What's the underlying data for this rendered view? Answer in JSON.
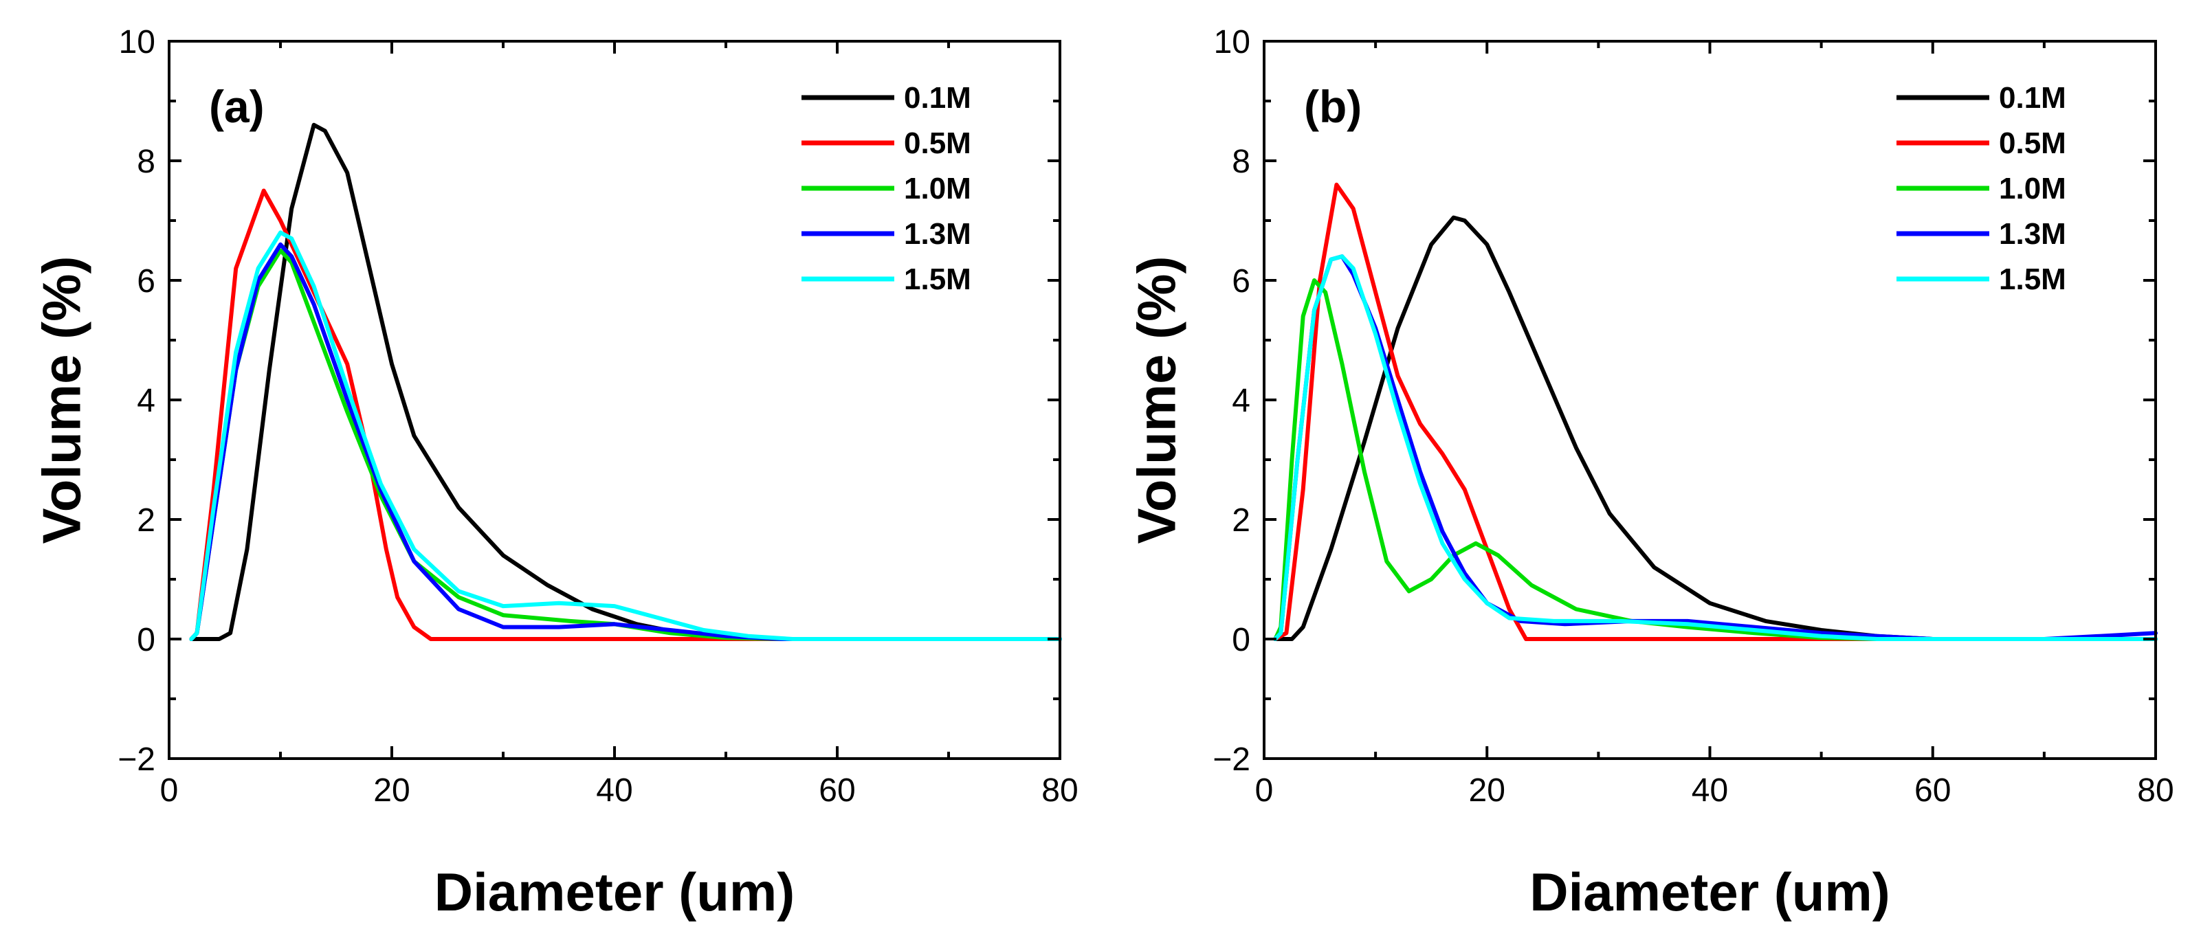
{
  "chart_data": [
    {
      "type": "line",
      "panel_label": "(a)",
      "xlabel": "Diameter (um)",
      "ylabel": "Volume (%)",
      "xlim": [
        0,
        80
      ],
      "ylim": [
        -2,
        10
      ],
      "xticks": [
        0,
        20,
        40,
        60,
        80
      ],
      "yticks": [
        -2,
        0,
        2,
        4,
        6,
        8,
        10
      ],
      "xtick_labels": [
        "0",
        "20",
        "40",
        "60",
        "80"
      ],
      "ytick_labels": [
        "−2",
        "0",
        "2",
        "4",
        "6",
        "8",
        "10"
      ],
      "legend": "top-right",
      "series": [
        {
          "name": "0.1M",
          "color": "#000000",
          "points": [
            [
              2,
              0
            ],
            [
              4.5,
              0
            ],
            [
              5.5,
              0.1
            ],
            [
              7,
              1.5
            ],
            [
              9,
              4.5
            ],
            [
              11,
              7.2
            ],
            [
              13,
              8.6
            ],
            [
              14,
              8.5
            ],
            [
              16,
              7.8
            ],
            [
              18,
              6.2
            ],
            [
              20,
              4.6
            ],
            [
              22,
              3.4
            ],
            [
              24,
              2.8
            ],
            [
              26,
              2.2
            ],
            [
              28,
              1.8
            ],
            [
              30,
              1.4
            ],
            [
              34,
              0.9
            ],
            [
              38,
              0.5
            ],
            [
              42,
              0.25
            ],
            [
              46,
              0.1
            ],
            [
              50,
              0.05
            ],
            [
              55,
              0
            ],
            [
              80,
              0
            ]
          ]
        },
        {
          "name": "0.5M",
          "color": "#ff0000",
          "points": [
            [
              2,
              0
            ],
            [
              2.5,
              0.1
            ],
            [
              4,
              2.5
            ],
            [
              6,
              6.2
            ],
            [
              8.5,
              7.5
            ],
            [
              10,
              7
            ],
            [
              12,
              6.2
            ],
            [
              14,
              5.4
            ],
            [
              16,
              4.6
            ],
            [
              18,
              3
            ],
            [
              19.5,
              1.5
            ],
            [
              20.5,
              0.7
            ],
            [
              22,
              0.2
            ],
            [
              23.5,
              0
            ],
            [
              80,
              0
            ]
          ]
        },
        {
          "name": "1.0M",
          "color": "#00dd00",
          "points": [
            [
              2,
              0
            ],
            [
              2.5,
              0.1
            ],
            [
              4,
              2
            ],
            [
              6,
              4.5
            ],
            [
              8,
              5.9
            ],
            [
              10,
              6.5
            ],
            [
              11,
              6.3
            ],
            [
              13,
              5.3
            ],
            [
              16,
              3.8
            ],
            [
              19,
              2.4
            ],
            [
              22,
              1.3
            ],
            [
              26,
              0.7
            ],
            [
              30,
              0.4
            ],
            [
              36,
              0.3
            ],
            [
              40,
              0.25
            ],
            [
              45,
              0.1
            ],
            [
              50,
              0.02
            ],
            [
              55,
              0
            ],
            [
              80,
              0
            ]
          ]
        },
        {
          "name": "1.3M",
          "color": "#0000ff",
          "points": [
            [
              2,
              0
            ],
            [
              2.5,
              0.1
            ],
            [
              4,
              2
            ],
            [
              6,
              4.5
            ],
            [
              8,
              6
            ],
            [
              10,
              6.6
            ],
            [
              11,
              6.4
            ],
            [
              13,
              5.6
            ],
            [
              16,
              4
            ],
            [
              19,
              2.5
            ],
            [
              22,
              1.3
            ],
            [
              26,
              0.5
            ],
            [
              30,
              0.2
            ],
            [
              35,
              0.2
            ],
            [
              40,
              0.25
            ],
            [
              45,
              0.15
            ],
            [
              50,
              0.05
            ],
            [
              55,
              0
            ],
            [
              80,
              0
            ]
          ]
        },
        {
          "name": "1.5M",
          "color": "#00ffff",
          "points": [
            [
              2,
              0
            ],
            [
              2.5,
              0.1
            ],
            [
              4,
              2.2
            ],
            [
              6,
              4.8
            ],
            [
              8,
              6.2
            ],
            [
              10,
              6.8
            ],
            [
              11,
              6.7
            ],
            [
              13,
              5.9
            ],
            [
              16,
              4.2
            ],
            [
              19,
              2.6
            ],
            [
              22,
              1.5
            ],
            [
              26,
              0.8
            ],
            [
              30,
              0.55
            ],
            [
              35,
              0.6
            ],
            [
              40,
              0.55
            ],
            [
              44,
              0.35
            ],
            [
              48,
              0.15
            ],
            [
              52,
              0.05
            ],
            [
              56,
              0
            ],
            [
              80,
              0
            ]
          ]
        }
      ]
    },
    {
      "type": "line",
      "panel_label": "(b)",
      "xlabel": "Diameter (um)",
      "ylabel": "Volume (%)",
      "xlim": [
        0,
        80
      ],
      "ylim": [
        -2,
        10
      ],
      "xticks": [
        0,
        20,
        40,
        60,
        80
      ],
      "yticks": [
        -2,
        0,
        2,
        4,
        6,
        8,
        10
      ],
      "xtick_labels": [
        "0",
        "20",
        "40",
        "60",
        "80"
      ],
      "ytick_labels": [
        "−2",
        "0",
        "2",
        "4",
        "6",
        "8",
        "10"
      ],
      "legend": "top-right",
      "series": [
        {
          "name": "0.1M",
          "color": "#000000",
          "points": [
            [
              1,
              0
            ],
            [
              2.5,
              0
            ],
            [
              3.5,
              0.2
            ],
            [
              6,
              1.5
            ],
            [
              9,
              3.3
            ],
            [
              12,
              5.2
            ],
            [
              15,
              6.6
            ],
            [
              17,
              7.05
            ],
            [
              18,
              7
            ],
            [
              20,
              6.6
            ],
            [
              22,
              5.8
            ],
            [
              25,
              4.5
            ],
            [
              28,
              3.2
            ],
            [
              31,
              2.1
            ],
            [
              35,
              1.2
            ],
            [
              40,
              0.6
            ],
            [
              45,
              0.3
            ],
            [
              50,
              0.15
            ],
            [
              55,
              0.05
            ],
            [
              60,
              0
            ],
            [
              80,
              0
            ]
          ]
        },
        {
          "name": "0.5M",
          "color": "#ff0000",
          "points": [
            [
              1,
              0
            ],
            [
              2,
              0.1
            ],
            [
              3.5,
              2.5
            ],
            [
              5,
              6
            ],
            [
              6.5,
              7.6
            ],
            [
              8,
              7.2
            ],
            [
              10,
              5.8
            ],
            [
              12,
              4.4
            ],
            [
              14,
              3.6
            ],
            [
              16,
              3.1
            ],
            [
              18,
              2.5
            ],
            [
              20,
              1.5
            ],
            [
              22,
              0.5
            ],
            [
              23.5,
              0
            ],
            [
              80,
              0
            ]
          ]
        },
        {
          "name": "1.0M",
          "color": "#00dd00",
          "points": [
            [
              1,
              0
            ],
            [
              1.5,
              0.2
            ],
            [
              2.5,
              3
            ],
            [
              3.5,
              5.4
            ],
            [
              4.5,
              6
            ],
            [
              5.5,
              5.8
            ],
            [
              7,
              4.6
            ],
            [
              9,
              2.8
            ],
            [
              11,
              1.3
            ],
            [
              13,
              0.8
            ],
            [
              15,
              1
            ],
            [
              17,
              1.4
            ],
            [
              19,
              1.6
            ],
            [
              21,
              1.4
            ],
            [
              24,
              0.9
            ],
            [
              28,
              0.5
            ],
            [
              33,
              0.3
            ],
            [
              38,
              0.2
            ],
            [
              44,
              0.1
            ],
            [
              50,
              0.02
            ],
            [
              55,
              0
            ],
            [
              80,
              0
            ]
          ]
        },
        {
          "name": "1.3M",
          "color": "#0000ff",
          "points": [
            [
              1,
              0
            ],
            [
              1.5,
              0.1
            ],
            [
              3,
              3
            ],
            [
              4.5,
              5.5
            ],
            [
              6,
              6.35
            ],
            [
              7,
              6.4
            ],
            [
              8,
              6.1
            ],
            [
              10,
              5.2
            ],
            [
              12,
              4
            ],
            [
              14,
              2.8
            ],
            [
              16,
              1.8
            ],
            [
              18,
              1.1
            ],
            [
              20,
              0.6
            ],
            [
              23,
              0.3
            ],
            [
              27,
              0.25
            ],
            [
              33,
              0.3
            ],
            [
              38,
              0.3
            ],
            [
              44,
              0.2
            ],
            [
              50,
              0.1
            ],
            [
              55,
              0.05
            ],
            [
              60,
              0
            ],
            [
              70,
              0
            ],
            [
              75,
              0.05
            ],
            [
              80,
              0.1
            ]
          ]
        },
        {
          "name": "1.5M",
          "color": "#00ffff",
          "points": [
            [
              1,
              0
            ],
            [
              1.5,
              0.1
            ],
            [
              3,
              3
            ],
            [
              4.5,
              5.5
            ],
            [
              6,
              6.35
            ],
            [
              7,
              6.4
            ],
            [
              8,
              6.2
            ],
            [
              10,
              5.1
            ],
            [
              12,
              3.8
            ],
            [
              14,
              2.6
            ],
            [
              16,
              1.6
            ],
            [
              18,
              1
            ],
            [
              20,
              0.6
            ],
            [
              22,
              0.35
            ],
            [
              26,
              0.3
            ],
            [
              32,
              0.3
            ],
            [
              38,
              0.25
            ],
            [
              44,
              0.15
            ],
            [
              50,
              0.05
            ],
            [
              55,
              0
            ],
            [
              80,
              0
            ]
          ]
        }
      ]
    }
  ]
}
